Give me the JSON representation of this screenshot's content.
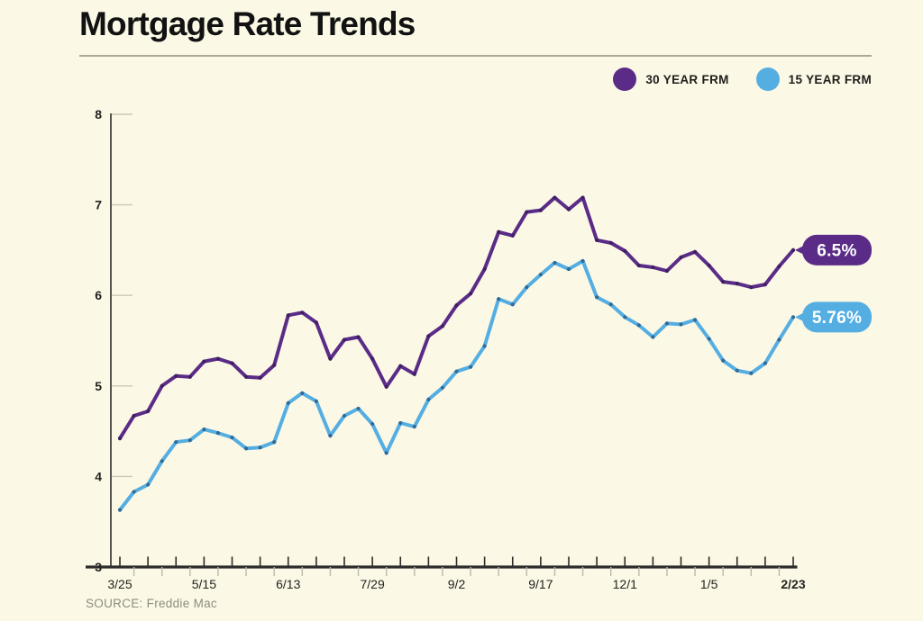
{
  "header": {
    "title": "Mortgage Rate Trends"
  },
  "legend": {
    "items": [
      {
        "label": "30 YEAR FRM",
        "color": "#5B2C87"
      },
      {
        "label": "15 YEAR FRM",
        "color": "#55AEE2"
      }
    ]
  },
  "chart_data": {
    "type": "line",
    "title": "Mortgage Rate Trends",
    "xlabel": "",
    "ylabel": "",
    "ylim": [
      3,
      8
    ],
    "y_ticks": [
      3,
      4,
      5,
      6,
      7,
      8
    ],
    "grid": "y-tick dashes only",
    "legend_position": "top-right",
    "points_count": 49,
    "x_tick_labels": [
      "3/25",
      "5/15",
      "6/13",
      "7/29",
      "9/2",
      "9/17",
      "12/1",
      "1/5",
      "2/23"
    ],
    "x_label_every": 6,
    "series": [
      {
        "name": "30 YEAR FRM",
        "color": "#5B2C87",
        "marker_color": "#3F1E61",
        "end_label": "6.5%",
        "values": [
          4.42,
          4.67,
          4.72,
          5.0,
          5.11,
          5.1,
          5.27,
          5.3,
          5.25,
          5.1,
          5.09,
          5.23,
          5.78,
          5.81,
          5.7,
          5.3,
          5.51,
          5.54,
          5.3,
          4.99,
          5.22,
          5.13,
          5.55,
          5.66,
          5.89,
          6.02,
          6.29,
          6.7,
          6.66,
          6.92,
          6.94,
          7.08,
          6.95,
          7.08,
          6.61,
          6.58,
          6.49,
          6.33,
          6.31,
          6.27,
          6.42,
          6.48,
          6.33,
          6.15,
          6.13,
          6.09,
          6.12,
          6.32,
          6.5
        ]
      },
      {
        "name": "15 YEAR FRM",
        "color": "#55AEE2",
        "marker_color": "#336A94",
        "end_label": "5.76%",
        "values": [
          3.63,
          3.83,
          3.91,
          4.17,
          4.38,
          4.4,
          4.52,
          4.48,
          4.43,
          4.31,
          4.32,
          4.38,
          4.81,
          4.92,
          4.83,
          4.45,
          4.67,
          4.75,
          4.58,
          4.26,
          4.59,
          4.55,
          4.85,
          4.98,
          5.16,
          5.21,
          5.44,
          5.96,
          5.9,
          6.09,
          6.23,
          6.36,
          6.29,
          6.38,
          5.98,
          5.9,
          5.76,
          5.67,
          5.54,
          5.69,
          5.68,
          5.73,
          5.52,
          5.28,
          5.17,
          5.14,
          5.25,
          5.51,
          5.76
        ]
      }
    ]
  },
  "colors": {
    "background": "#FBF8E6",
    "axis": "#2E2C2A",
    "tick_minor": "#BDBAAA",
    "y_dash": "#CBC8B6",
    "divider": "#ABA89B",
    "purple": "#5B2C87",
    "blue": "#55AEE2"
  },
  "footer": {
    "source": "SOURCE: Freddie Mac"
  }
}
